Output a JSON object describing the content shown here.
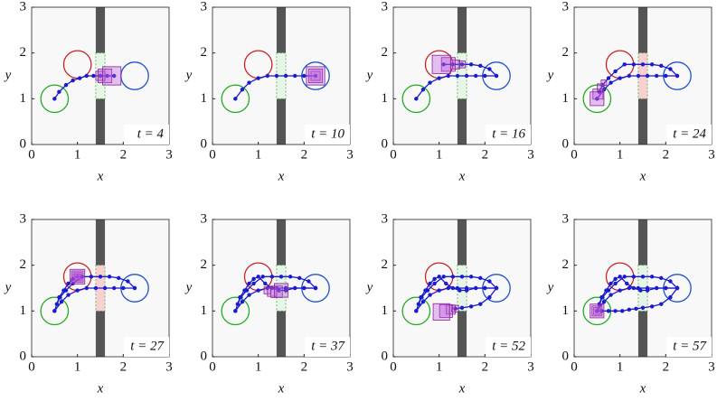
{
  "chart_data": [
    {
      "type": "trajectory",
      "annotation": "t = 4",
      "xlabel": "x",
      "ylabel": "y",
      "xlim": [
        0,
        3
      ],
      "ylim": [
        0,
        3
      ],
      "xticks": [
        0,
        1,
        2,
        3
      ],
      "yticks": [
        0,
        1,
        2,
        3
      ],
      "obstacle": {
        "x": [
          1.4,
          1.6
        ],
        "gap": [
          1,
          2
        ],
        "color": "#555555",
        "gate_color": "#e6f5e6"
      },
      "regions": [
        {
          "x": 0.5,
          "y": 1,
          "r": 0.3,
          "color": "#22aa22"
        },
        {
          "x": 1,
          "y": 1.75,
          "r": 0.3,
          "color": "#cc2222"
        },
        {
          "x": 2.25,
          "y": 1.5,
          "r": 0.3,
          "color": "#2255cc"
        }
      ],
      "series": [
        {
          "color": "#1a1ad0",
          "x": [
            0.5,
            0.6,
            0.75,
            0.9,
            1.05,
            1.2,
            1.35,
            1.5,
            1.65,
            1.8
          ],
          "values": [
            1,
            1.15,
            1.3,
            1.4,
            1.45,
            1.5,
            1.5,
            1.5,
            1.5,
            1.5
          ]
        }
      ],
      "boxes": {
        "color": "#bb55dd",
        "x": [
          1.5,
          1.6,
          1.75
        ],
        "y": [
          1.5,
          1.5,
          1.5
        ],
        "size": [
          0.2,
          0.3,
          0.4
        ]
      }
    },
    {
      "type": "trajectory",
      "annotation": "t = 10",
      "xlabel": "x",
      "ylabel": "y",
      "xlim": [
        0,
        3
      ],
      "ylim": [
        0,
        3
      ],
      "xticks": [
        0,
        1,
        2,
        3
      ],
      "yticks": [
        0,
        1,
        2,
        3
      ],
      "obstacle": {
        "x": [
          1.4,
          1.6
        ],
        "gap": [
          1,
          2
        ],
        "color": "#555555",
        "gate_color": "#e6f5e6"
      },
      "regions": [
        {
          "x": 0.5,
          "y": 1,
          "r": 0.3,
          "color": "#22aa22"
        },
        {
          "x": 1,
          "y": 1.75,
          "r": 0.3,
          "color": "#cc2222"
        },
        {
          "x": 2.25,
          "y": 1.5,
          "r": 0.3,
          "color": "#2255cc"
        }
      ],
      "series": [
        {
          "color": "#1a1ad0",
          "x": [
            0.5,
            0.65,
            0.8,
            1,
            1.2,
            1.4,
            1.6,
            1.8,
            2,
            2.25
          ],
          "values": [
            1,
            1.2,
            1.35,
            1.45,
            1.5,
            1.5,
            1.5,
            1.5,
            1.5,
            1.5
          ]
        }
      ],
      "boxes": {
        "color": "#bb55dd",
        "x": [
          2.25,
          2.25,
          2.25
        ],
        "y": [
          1.5,
          1.5,
          1.5
        ],
        "size": [
          0.2,
          0.3,
          0.4
        ]
      }
    },
    {
      "type": "trajectory",
      "annotation": "t = 16",
      "xlabel": "x",
      "ylabel": "y",
      "xlim": [
        0,
        3
      ],
      "ylim": [
        0,
        3
      ],
      "xticks": [
        0,
        1,
        2,
        3
      ],
      "yticks": [
        0,
        1,
        2,
        3
      ],
      "obstacle": {
        "x": [
          1.4,
          1.6
        ],
        "gap": [
          1,
          2
        ],
        "color": "#555555",
        "gate_color": "#e6f5e6"
      },
      "regions": [
        {
          "x": 0.5,
          "y": 1,
          "r": 0.3,
          "color": "#22aa22"
        },
        {
          "x": 1,
          "y": 1.75,
          "r": 0.3,
          "color": "#cc2222"
        },
        {
          "x": 2.25,
          "y": 1.5,
          "r": 0.3,
          "color": "#2255cc"
        }
      ],
      "series": [
        {
          "color": "#1a1ad0",
          "x": [
            0.5,
            0.65,
            0.8,
            1,
            1.2,
            1.4,
            1.6,
            1.8,
            2,
            2.25
          ],
          "values": [
            1,
            1.2,
            1.35,
            1.45,
            1.5,
            1.5,
            1.5,
            1.5,
            1.5,
            1.5
          ]
        },
        {
          "color": "#1a1ad0",
          "x": [
            2.25,
            2.1,
            1.9,
            1.7,
            1.5,
            1.3,
            1.1
          ],
          "values": [
            1.5,
            1.65,
            1.72,
            1.75,
            1.75,
            1.75,
            1.75
          ]
        }
      ],
      "boxes": {
        "color": "#bb55dd",
        "x": [
          1.5,
          1.35,
          1.2,
          1.05
        ],
        "y": [
          1.75,
          1.75,
          1.75,
          1.75
        ],
        "size": [
          0.15,
          0.2,
          0.3,
          0.4
        ]
      }
    },
    {
      "type": "trajectory",
      "annotation": "t = 24",
      "xlabel": "x",
      "ylabel": "y",
      "xlim": [
        0,
        3
      ],
      "ylim": [
        0,
        3
      ],
      "xticks": [
        0,
        1,
        2,
        3
      ],
      "yticks": [
        0,
        1,
        2,
        3
      ],
      "obstacle": {
        "x": [
          1.4,
          1.6
        ],
        "gap": [
          1,
          2
        ],
        "color": "#555555",
        "gate_color": "#f8d0d0"
      },
      "regions": [
        {
          "x": 0.5,
          "y": 1,
          "r": 0.3,
          "color": "#22aa22"
        },
        {
          "x": 1,
          "y": 1.75,
          "r": 0.3,
          "color": "#cc2222"
        },
        {
          "x": 2.25,
          "y": 1.5,
          "r": 0.3,
          "color": "#2255cc"
        }
      ],
      "series": [
        {
          "color": "#1a1ad0",
          "x": [
            0.5,
            0.65,
            0.8,
            1,
            1.2,
            1.4,
            1.6,
            1.8,
            2,
            2.25
          ],
          "values": [
            1,
            1.2,
            1.35,
            1.45,
            1.5,
            1.5,
            1.5,
            1.5,
            1.5,
            1.5
          ]
        },
        {
          "color": "#1a1ad0",
          "x": [
            2.25,
            2.1,
            1.9,
            1.7,
            1.5,
            1.3,
            1.1,
            0.9,
            0.75,
            0.62,
            0.55
          ],
          "values": [
            1.5,
            1.65,
            1.72,
            1.75,
            1.75,
            1.75,
            1.75,
            1.6,
            1.45,
            1.3,
            1.15
          ]
        }
      ],
      "boxes": {
        "color": "#bb55dd",
        "x": [
          0.65,
          0.58,
          0.52,
          0.5
        ],
        "y": [
          1.35,
          1.25,
          1.1,
          1
        ],
        "size": [
          0.12,
          0.15,
          0.22,
          0.3
        ]
      }
    },
    {
      "type": "trajectory",
      "annotation": "t = 27",
      "xlabel": "x",
      "ylabel": "y",
      "xlim": [
        0,
        3
      ],
      "ylim": [
        0,
        3
      ],
      "xticks": [
        0,
        1,
        2,
        3
      ],
      "yticks": [
        0,
        1,
        2,
        3
      ],
      "obstacle": {
        "x": [
          1.4,
          1.6
        ],
        "gap": [
          1,
          2
        ],
        "color": "#555555",
        "gate_color": "#f8d0d0"
      },
      "regions": [
        {
          "x": 0.5,
          "y": 1,
          "r": 0.3,
          "color": "#22aa22"
        },
        {
          "x": 1,
          "y": 1.75,
          "r": 0.3,
          "color": "#cc2222"
        },
        {
          "x": 2.25,
          "y": 1.5,
          "r": 0.3,
          "color": "#2255cc"
        }
      ],
      "series": [
        {
          "color": "#1a1ad0",
          "x": [
            0.5,
            0.65,
            0.8,
            1,
            1.2,
            1.4,
            1.6,
            1.8,
            2,
            2.25
          ],
          "values": [
            1,
            1.2,
            1.35,
            1.45,
            1.5,
            1.5,
            1.5,
            1.5,
            1.5,
            1.5
          ]
        },
        {
          "color": "#1a1ad0",
          "x": [
            2.25,
            2.1,
            1.9,
            1.7,
            1.5,
            1.3,
            1.1,
            0.9,
            0.75,
            0.62,
            0.55
          ],
          "values": [
            1.5,
            1.65,
            1.72,
            1.75,
            1.75,
            1.75,
            1.75,
            1.6,
            1.45,
            1.3,
            1.15
          ]
        },
        {
          "color": "#1a1ad0",
          "x": [
            0.5,
            0.6,
            0.7,
            0.8,
            0.9,
            1
          ],
          "values": [
            1,
            1.3,
            1.45,
            1.6,
            1.7,
            1.75
          ]
        }
      ],
      "boxes": {
        "color": "#bb55dd",
        "x": [
          1,
          1,
          1,
          1
        ],
        "y": [
          1.75,
          1.75,
          1.75,
          1.75
        ],
        "size": [
          0.12,
          0.18,
          0.25,
          0.32
        ]
      }
    },
    {
      "type": "trajectory",
      "annotation": "t = 37",
      "xlabel": "x",
      "ylabel": "y",
      "xlim": [
        0,
        3
      ],
      "ylim": [
        0,
        3
      ],
      "xticks": [
        0,
        1,
        2,
        3
      ],
      "yticks": [
        0,
        1,
        2,
        3
      ],
      "obstacle": {
        "x": [
          1.4,
          1.6
        ],
        "gap": [
          1,
          2
        ],
        "color": "#555555",
        "gate_color": "#e6f5e6"
      },
      "regions": [
        {
          "x": 0.5,
          "y": 1,
          "r": 0.3,
          "color": "#22aa22"
        },
        {
          "x": 1,
          "y": 1.75,
          "r": 0.3,
          "color": "#cc2222"
        },
        {
          "x": 2.25,
          "y": 1.5,
          "r": 0.3,
          "color": "#2255cc"
        }
      ],
      "series": [
        {
          "color": "#1a1ad0",
          "x": [
            0.5,
            0.65,
            0.8,
            1,
            1.2,
            1.4,
            1.6,
            1.8,
            2,
            2.25
          ],
          "values": [
            1,
            1.2,
            1.35,
            1.45,
            1.5,
            1.5,
            1.5,
            1.5,
            1.5,
            1.5
          ]
        },
        {
          "color": "#1a1ad0",
          "x": [
            2.25,
            2.1,
            1.9,
            1.7,
            1.5,
            1.3,
            1.1,
            0.9,
            0.75,
            0.62,
            0.55
          ],
          "values": [
            1.5,
            1.65,
            1.72,
            1.75,
            1.75,
            1.75,
            1.75,
            1.6,
            1.45,
            1.3,
            1.15
          ]
        },
        {
          "color": "#1a1ad0",
          "x": [
            0.5,
            0.6,
            0.7,
            0.8,
            0.9,
            1,
            1.15,
            1.3,
            1.45,
            1.6,
            1.8,
            2,
            2.25
          ],
          "values": [
            1,
            1.3,
            1.45,
            1.6,
            1.7,
            1.75,
            1.6,
            1.5,
            1.45,
            1.45,
            1.5,
            1.5,
            1.5
          ]
        }
      ],
      "boxes": {
        "color": "#bb55dd",
        "x": [
          1.2,
          1.3,
          1.4,
          1.5
        ],
        "y": [
          1.45,
          1.42,
          1.42,
          1.45
        ],
        "size": [
          0.15,
          0.2,
          0.25,
          0.3
        ]
      }
    },
    {
      "type": "trajectory",
      "annotation": "t = 52",
      "xlabel": "x",
      "ylabel": "y",
      "xlim": [
        0,
        3
      ],
      "ylim": [
        0,
        3
      ],
      "xticks": [
        0,
        1,
        2,
        3
      ],
      "yticks": [
        0,
        1,
        2,
        3
      ],
      "obstacle": {
        "x": [
          1.4,
          1.6
        ],
        "gap": [
          1,
          2
        ],
        "color": "#555555",
        "gate_color": "#e6f5e6"
      },
      "regions": [
        {
          "x": 0.5,
          "y": 1,
          "r": 0.3,
          "color": "#22aa22"
        },
        {
          "x": 1,
          "y": 1.75,
          "r": 0.3,
          "color": "#cc2222"
        },
        {
          "x": 2.25,
          "y": 1.5,
          "r": 0.3,
          "color": "#2255cc"
        }
      ],
      "series": [
        {
          "color": "#1a1ad0",
          "x": [
            0.5,
            0.65,
            0.8,
            1,
            1.2,
            1.4,
            1.6,
            1.8,
            2,
            2.25
          ],
          "values": [
            1,
            1.2,
            1.35,
            1.45,
            1.5,
            1.5,
            1.5,
            1.5,
            1.5,
            1.5
          ]
        },
        {
          "color": "#1a1ad0",
          "x": [
            2.25,
            2.1,
            1.9,
            1.7,
            1.5,
            1.3,
            1.1,
            0.9,
            0.75,
            0.62,
            0.55
          ],
          "values": [
            1.5,
            1.65,
            1.72,
            1.75,
            1.75,
            1.75,
            1.75,
            1.6,
            1.45,
            1.3,
            1.15
          ]
        },
        {
          "color": "#1a1ad0",
          "x": [
            0.5,
            0.6,
            0.7,
            0.8,
            0.9,
            1,
            1.15,
            1.3,
            1.45,
            1.6,
            1.8,
            2,
            2.25
          ],
          "values": [
            1,
            1.3,
            1.45,
            1.6,
            1.7,
            1.75,
            1.6,
            1.5,
            1.45,
            1.45,
            1.5,
            1.5,
            1.5
          ]
        },
        {
          "color": "#1a1ad0",
          "x": [
            2.25,
            2.1,
            1.9,
            1.7,
            1.5,
            1.35
          ],
          "values": [
            1.5,
            1.3,
            1.15,
            1.1,
            1.07,
            1.05
          ]
        }
      ],
      "boxes": {
        "color": "#bb55dd",
        "x": [
          1.35,
          1.25,
          1.15,
          1.05
        ],
        "y": [
          1.05,
          1.03,
          1,
          0.98
        ],
        "size": [
          0.15,
          0.2,
          0.28,
          0.36
        ]
      }
    },
    {
      "type": "trajectory",
      "annotation": "t = 57",
      "xlabel": "x",
      "ylabel": "y",
      "xlim": [
        0,
        3
      ],
      "ylim": [
        0,
        3
      ],
      "xticks": [
        0,
        1,
        2,
        3
      ],
      "yticks": [
        0,
        1,
        2,
        3
      ],
      "obstacle": {
        "x": [
          1.4,
          1.6
        ],
        "gap": [
          1,
          2
        ],
        "color": "#555555",
        "gate_color": "#e6f5e6"
      },
      "regions": [
        {
          "x": 0.5,
          "y": 1,
          "r": 0.3,
          "color": "#22aa22"
        },
        {
          "x": 1,
          "y": 1.75,
          "r": 0.3,
          "color": "#cc2222"
        },
        {
          "x": 2.25,
          "y": 1.5,
          "r": 0.3,
          "color": "#2255cc"
        }
      ],
      "series": [
        {
          "color": "#1a1ad0",
          "x": [
            0.5,
            0.65,
            0.8,
            1,
            1.2,
            1.4,
            1.6,
            1.8,
            2,
            2.25
          ],
          "values": [
            1,
            1.2,
            1.35,
            1.45,
            1.5,
            1.5,
            1.5,
            1.5,
            1.5,
            1.5
          ]
        },
        {
          "color": "#1a1ad0",
          "x": [
            2.25,
            2.1,
            1.9,
            1.7,
            1.5,
            1.3,
            1.1,
            0.9,
            0.75,
            0.62,
            0.55
          ],
          "values": [
            1.5,
            1.65,
            1.72,
            1.75,
            1.75,
            1.75,
            1.75,
            1.6,
            1.45,
            1.3,
            1.15
          ]
        },
        {
          "color": "#1a1ad0",
          "x": [
            0.5,
            0.6,
            0.7,
            0.8,
            0.9,
            1,
            1.15,
            1.3,
            1.45,
            1.6,
            1.8,
            2,
            2.25
          ],
          "values": [
            1,
            1.3,
            1.45,
            1.6,
            1.7,
            1.75,
            1.6,
            1.5,
            1.45,
            1.45,
            1.5,
            1.5,
            1.5
          ]
        },
        {
          "color": "#1a1ad0",
          "x": [
            2.25,
            2.1,
            1.9,
            1.7,
            1.5,
            1.35,
            1.2,
            1.05,
            0.9,
            0.75,
            0.6,
            0.5
          ],
          "values": [
            1.5,
            1.3,
            1.15,
            1.1,
            1.07,
            1.05,
            1.03,
            1,
            1,
            1,
            1,
            1
          ]
        }
      ],
      "boxes": {
        "color": "#bb55dd",
        "x": [
          0.5,
          0.5,
          0.5
        ],
        "y": [
          1,
          1,
          1
        ],
        "size": [
          0.15,
          0.22,
          0.3
        ]
      }
    }
  ]
}
